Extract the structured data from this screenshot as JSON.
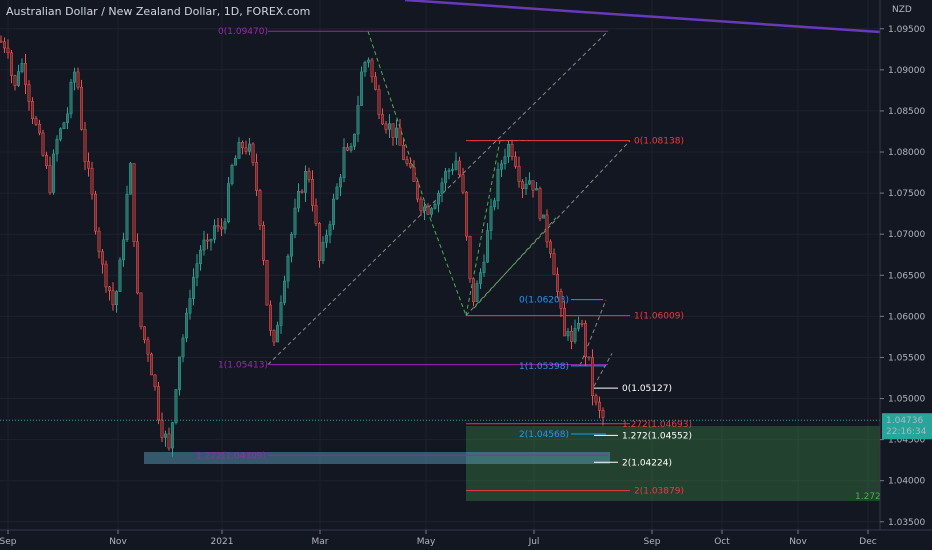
{
  "chart_data": {
    "type": "candlestick",
    "title": "Australian Dollar / New Zealand Dollar, 1D, FOREX.com",
    "unit": "NZD",
    "ylim": [
      1.034,
      1.0985
    ],
    "y_ticks": [
      "1.09500",
      "1.09000",
      "1.08500",
      "1.08000",
      "1.07500",
      "1.07000",
      "1.06500",
      "1.06000",
      "1.05500",
      "1.05000",
      "1.04500",
      "1.04000",
      "1.03500"
    ],
    "x_ticks": [
      "Sep",
      "Nov",
      "2021",
      "Mar",
      "May",
      "Jul",
      "Sep",
      "Oct",
      "Nov",
      "Dec"
    ],
    "last_price": "1.04736",
    "countdown": "22:16:34",
    "series_path": [
      [
        0,
        1.0935
      ],
      [
        8,
        1.093
      ],
      [
        14,
        1.087
      ],
      [
        20,
        1.0915
      ],
      [
        26,
        1.089
      ],
      [
        32,
        1.085
      ],
      [
        38,
        1.082
      ],
      [
        44,
        1.079
      ],
      [
        50,
        1.076
      ],
      [
        56,
        1.081
      ],
      [
        62,
        1.083
      ],
      [
        68,
        1.085
      ],
      [
        74,
        1.09
      ],
      [
        78,
        1.088
      ],
      [
        84,
        1.08
      ],
      [
        90,
        1.076
      ],
      [
        96,
        1.071
      ],
      [
        102,
        1.066
      ],
      [
        108,
        1.064
      ],
      [
        114,
        1.061
      ],
      [
        120,
        1.066
      ],
      [
        126,
        1.073
      ],
      [
        130,
        1.079
      ],
      [
        134,
        1.07
      ],
      [
        138,
        1.061
      ],
      [
        142,
        1.058
      ],
      [
        148,
        1.056
      ],
      [
        154,
        1.052
      ],
      [
        160,
        1.047
      ],
      [
        166,
        1.045
      ],
      [
        170,
        1.043
      ],
      [
        174,
        1.05
      ],
      [
        180,
        1.056
      ],
      [
        186,
        1.059
      ],
      [
        190,
        1.063
      ],
      [
        196,
        1.066
      ],
      [
        202,
        1.069
      ],
      [
        208,
        1.068
      ],
      [
        214,
        1.071
      ],
      [
        220,
        1.07
      ],
      [
        226,
        1.073
      ],
      [
        232,
        1.078
      ],
      [
        238,
        1.08
      ],
      [
        244,
        1.081
      ],
      [
        250,
        1.08
      ],
      [
        256,
        1.076
      ],
      [
        262,
        1.07
      ],
      [
        266,
        1.063
      ],
      [
        270,
        1.058
      ],
      [
        274,
        1.056
      ],
      [
        278,
        1.06
      ],
      [
        284,
        1.065
      ],
      [
        290,
        1.069
      ],
      [
        296,
        1.073
      ],
      [
        302,
        1.076
      ],
      [
        308,
        1.078
      ],
      [
        314,
        1.073
      ],
      [
        320,
        1.066
      ],
      [
        326,
        1.07
      ],
      [
        332,
        1.073
      ],
      [
        338,
        1.076
      ],
      [
        344,
        1.08
      ],
      [
        350,
        1.079
      ],
      [
        356,
        1.084
      ],
      [
        362,
        1.09
      ],
      [
        368,
        1.092
      ],
      [
        372,
        1.089
      ],
      [
        378,
        1.086
      ],
      [
        384,
        1.084
      ],
      [
        390,
        1.083
      ],
      [
        396,
        1.082
      ],
      [
        402,
        1.08
      ],
      [
        408,
        1.078
      ],
      [
        414,
        1.076
      ],
      [
        420,
        1.074
      ],
      [
        426,
        1.073
      ],
      [
        432,
        1.074
      ],
      [
        438,
        1.075
      ],
      [
        444,
        1.077
      ],
      [
        450,
        1.078
      ],
      [
        456,
        1.079
      ],
      [
        462,
        1.076
      ],
      [
        466,
        1.07
      ],
      [
        470,
        1.064
      ],
      [
        474,
        1.062
      ],
      [
        480,
        1.065
      ],
      [
        486,
        1.069
      ],
      [
        492,
        1.073
      ],
      [
        498,
        1.077
      ],
      [
        504,
        1.08
      ],
      [
        510,
        1.081
      ],
      [
        516,
        1.079
      ],
      [
        522,
        1.076
      ],
      [
        528,
        1.077
      ],
      [
        534,
        1.076
      ],
      [
        540,
        1.073
      ],
      [
        546,
        1.07
      ],
      [
        552,
        1.068
      ],
      [
        556,
        1.064
      ],
      [
        560,
        1.061
      ],
      [
        564,
        1.057
      ],
      [
        568,
        1.059
      ],
      [
        572,
        1.056
      ],
      [
        576,
        1.058
      ],
      [
        580,
        1.061
      ],
      [
        584,
        1.056
      ],
      [
        588,
        1.055
      ],
      [
        592,
        1.051
      ],
      [
        596,
        1.049
      ],
      [
        600,
        1.048
      ],
      [
        604,
        1.0474
      ]
    ],
    "fib_levels": [
      {
        "label": "0(1.09470)",
        "value": 1.0947,
        "x1": 268,
        "x2": 608,
        "color": "#9c27b0",
        "label_x": 268,
        "anchor": "end"
      },
      {
        "label": "1(1.05413)",
        "value": 1.05413,
        "x1": 268,
        "x2": 608,
        "color": "#9c27b0",
        "label_x": 268,
        "anchor": "end"
      },
      {
        "label": "1.272(1.04309)",
        "value": 1.04309,
        "x1": 268,
        "x2": 608,
        "color": "#9c27b0",
        "label_x": 266,
        "anchor": "end"
      },
      {
        "label": "0(1.08138)",
        "value": 1.08138,
        "x1": 466,
        "x2": 630,
        "color": "#f23645",
        "label_x": 634,
        "anchor": "start"
      },
      {
        "label": "1(1.06009)",
        "value": 1.06009,
        "x1": 466,
        "x2": 630,
        "color": "#f23645",
        "label_x": 634,
        "anchor": "start"
      },
      {
        "label": "1.272(1.04693)",
        "value": 1.04693,
        "x1": 466,
        "x2": 630,
        "color": "#f23645",
        "label_x": 622,
        "anchor": "start"
      },
      {
        "label": "2(1.03879)",
        "value": 1.03879,
        "x1": 466,
        "x2": 630,
        "color": "#f23645",
        "label_x": 634,
        "anchor": "start"
      },
      {
        "label": "0(1.06203)",
        "value": 1.06203,
        "x1": 571,
        "x2": 603,
        "color": "#2196f3",
        "label_x": 569,
        "anchor": "end"
      },
      {
        "label": "1(1.05398)",
        "value": 1.05398,
        "x1": 571,
        "x2": 606,
        "color": "#2196f3",
        "label_x": 569,
        "anchor": "end"
      },
      {
        "label": "2(1.04568)",
        "value": 1.04568,
        "x1": 571,
        "x2": 606,
        "color": "#2196f3",
        "label_x": 569,
        "anchor": "end"
      },
      {
        "label": "0(1.05127)",
        "value": 1.05127,
        "x1": 594,
        "x2": 618,
        "color": "#ffffff",
        "label_x": 622,
        "anchor": "start"
      },
      {
        "label": "1.272(1.04552)",
        "value": 1.04552,
        "x1": 594,
        "x2": 618,
        "color": "#ffffff",
        "label_x": 622,
        "anchor": "start"
      },
      {
        "label": "2(1.04224)",
        "value": 1.04224,
        "x1": 594,
        "x2": 618,
        "color": "#ffffff",
        "label_x": 622,
        "anchor": "start"
      }
    ],
    "zone_label": "1.272",
    "trend_line": [
      [
        405,
        1.0985
      ],
      [
        880,
        1.0946
      ]
    ]
  }
}
